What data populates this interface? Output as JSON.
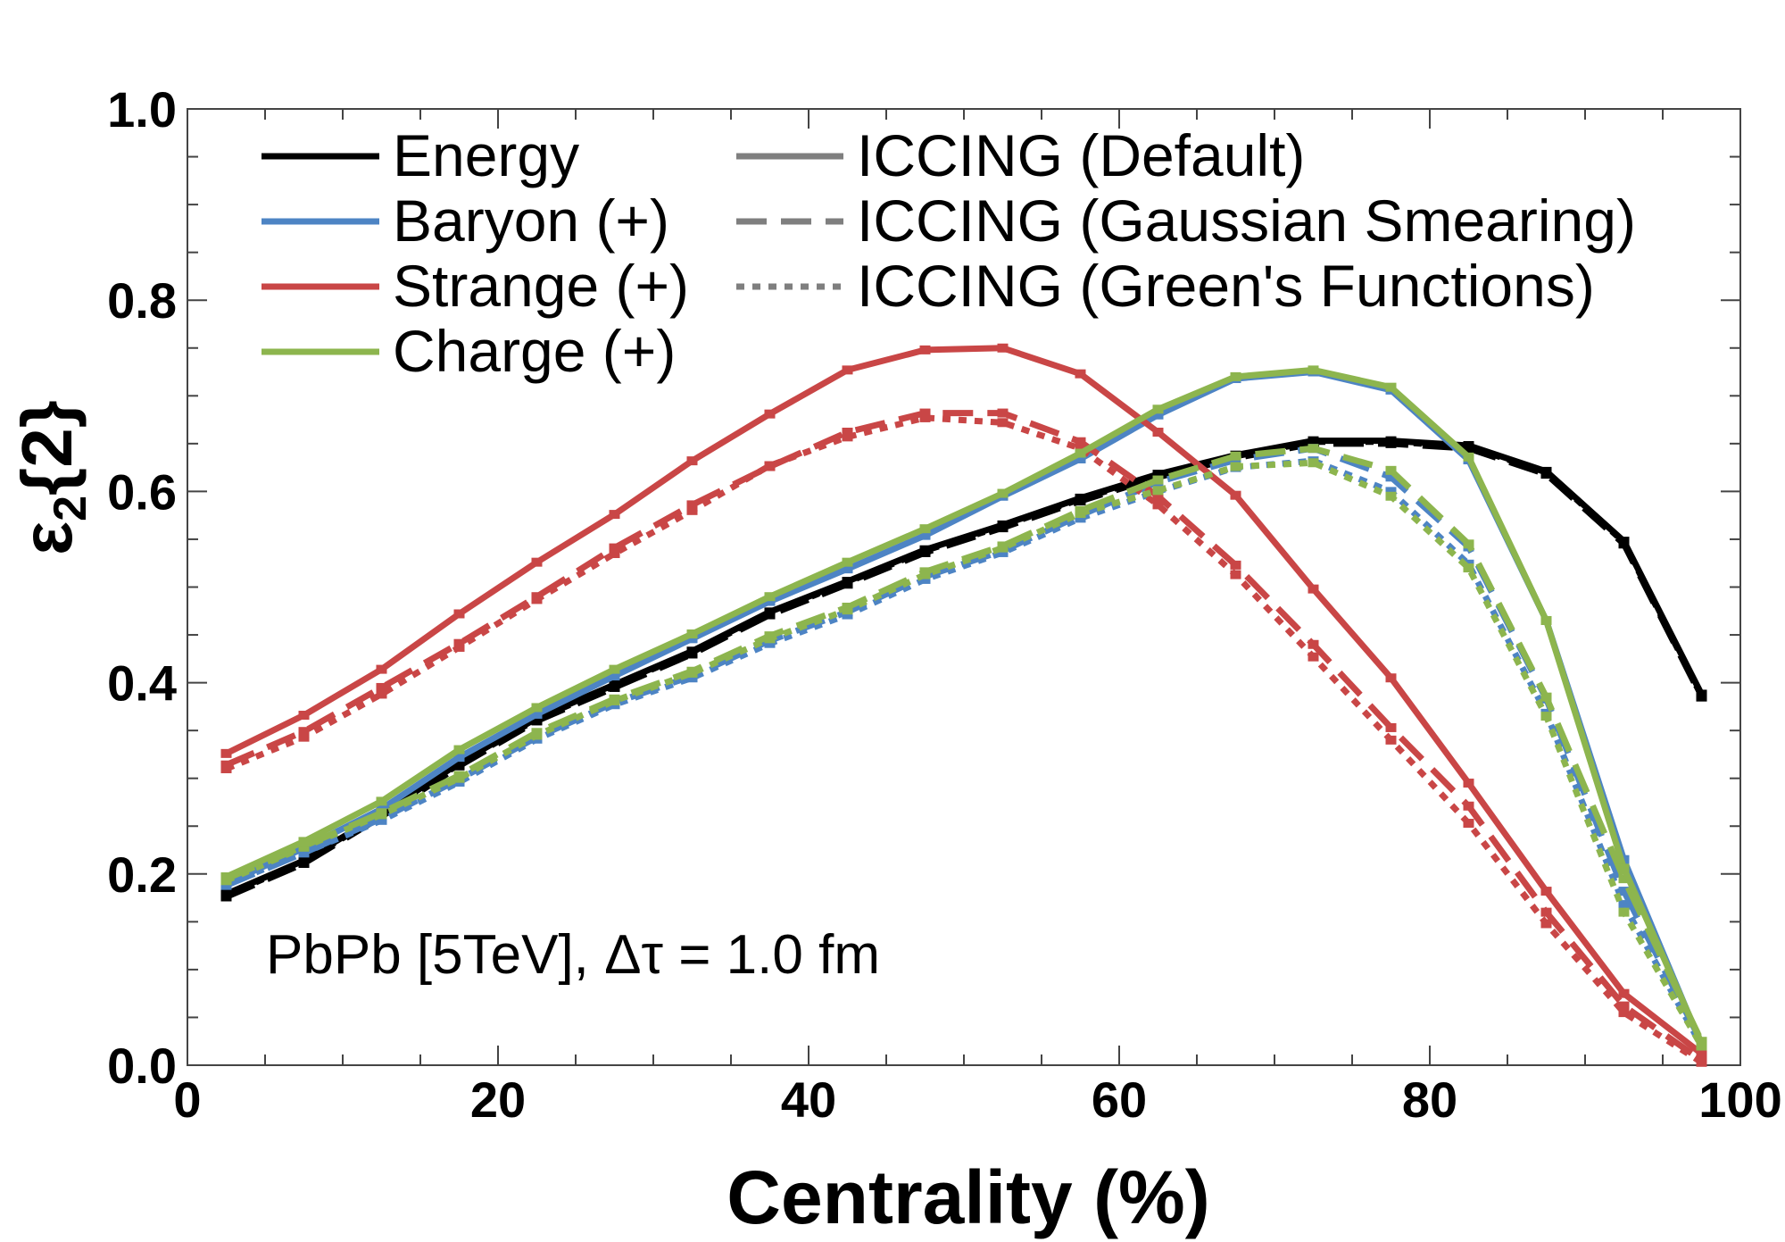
{
  "chart_data": {
    "type": "line",
    "xlabel": "Centrality (%)",
    "ylabel": "ε2{2}",
    "ylabel_parts": {
      "main": "ε",
      "sub": "2",
      "rest": "{2}"
    },
    "xlim": [
      0,
      100
    ],
    "ylim": [
      0,
      1.0
    ],
    "x_ticks": [
      "0",
      "20",
      "40",
      "60",
      "80",
      "100"
    ],
    "y_ticks": [
      "0.0",
      "0.2",
      "0.4",
      "0.6",
      "0.8",
      "1.0"
    ],
    "grid": false,
    "legend_position": "top-left",
    "annotation": "PbPb [5TeV], Δτ = 1.0 fm",
    "legend_colors": [
      {
        "label": "Energy",
        "color": "#000000"
      },
      {
        "label": "Baryon (+)",
        "color": "#4d84c4"
      },
      {
        "label": "Strange (+)",
        "color": "#c94646"
      },
      {
        "label": "Charge (+)",
        "color": "#8db54e"
      }
    ],
    "legend_styles": [
      {
        "label": "ICCING (Default)",
        "dash": "solid"
      },
      {
        "label": "ICCING (Gaussian Smearing)",
        "dash": "dashed"
      },
      {
        "label": "ICCING (Green's Functions)",
        "dash": "dotted"
      }
    ],
    "x": [
      2.5,
      7.5,
      12.5,
      17.5,
      22.5,
      27.5,
      32.5,
      37.5,
      42.5,
      47.5,
      52.5,
      57.5,
      62.5,
      67.5,
      72.5,
      77.5,
      82.5,
      87.5,
      92.5,
      97.5
    ],
    "series": [
      {
        "quantity": "Energy",
        "style": "dotted",
        "color": "#000000",
        "values": [
          0.178,
          0.213,
          0.262,
          0.315,
          0.362,
          0.397,
          0.432,
          0.473,
          0.505,
          0.538,
          0.564,
          0.592,
          0.617,
          0.637,
          0.652,
          0.652,
          0.647,
          0.62,
          0.547,
          0.386
        ]
      },
      {
        "quantity": "Energy",
        "style": "dashed",
        "color": "#000000",
        "values": [
          0.176,
          0.211,
          0.26,
          0.313,
          0.36,
          0.395,
          0.43,
          0.471,
          0.503,
          0.536,
          0.562,
          0.59,
          0.615,
          0.635,
          0.65,
          0.65,
          0.645,
          0.618,
          0.545,
          0.385
        ]
      },
      {
        "quantity": "Energy",
        "style": "solid",
        "color": "#000000",
        "values": [
          0.179,
          0.214,
          0.263,
          0.316,
          0.363,
          0.398,
          0.433,
          0.474,
          0.506,
          0.539,
          0.565,
          0.593,
          0.618,
          0.638,
          0.653,
          0.653,
          0.648,
          0.621,
          0.548,
          0.388
        ]
      },
      {
        "quantity": "Baryon (+)",
        "style": "dotted",
        "color": "#4d84c4",
        "values": [
          0.189,
          0.222,
          0.256,
          0.296,
          0.341,
          0.377,
          0.405,
          0.441,
          0.471,
          0.508,
          0.536,
          0.572,
          0.6,
          0.625,
          0.632,
          0.6,
          0.524,
          0.368,
          0.168,
          0.02
        ]
      },
      {
        "quantity": "Baryon (+)",
        "style": "dashed",
        "color": "#4d84c4",
        "values": [
          0.188,
          0.222,
          0.258,
          0.299,
          0.343,
          0.379,
          0.407,
          0.444,
          0.474,
          0.511,
          0.538,
          0.575,
          0.61,
          0.633,
          0.645,
          0.615,
          0.542,
          0.383,
          0.182,
          0.024
        ]
      },
      {
        "quantity": "Baryon (+)",
        "style": "solid",
        "color": "#4d84c4",
        "values": [
          0.19,
          0.227,
          0.268,
          0.322,
          0.367,
          0.407,
          0.446,
          0.485,
          0.519,
          0.554,
          0.595,
          0.634,
          0.68,
          0.718,
          0.725,
          0.706,
          0.633,
          0.465,
          0.215,
          0.021
        ]
      },
      {
        "quantity": "Strange (+)",
        "style": "dotted",
        "color": "#c94646",
        "values": [
          0.31,
          0.343,
          0.388,
          0.437,
          0.487,
          0.535,
          0.58,
          0.627,
          0.657,
          0.677,
          0.672,
          0.645,
          0.586,
          0.513,
          0.427,
          0.34,
          0.253,
          0.148,
          0.055,
          0.003
        ]
      },
      {
        "quantity": "Strange (+)",
        "style": "dashed",
        "color": "#c94646",
        "values": [
          0.314,
          0.349,
          0.395,
          0.441,
          0.49,
          0.541,
          0.586,
          0.626,
          0.662,
          0.682,
          0.682,
          0.652,
          0.595,
          0.523,
          0.44,
          0.353,
          0.271,
          0.16,
          0.062,
          0.005
        ]
      },
      {
        "quantity": "Strange (+)",
        "style": "solid",
        "color": "#c94646",
        "values": [
          0.326,
          0.366,
          0.414,
          0.472,
          0.526,
          0.576,
          0.632,
          0.681,
          0.727,
          0.748,
          0.75,
          0.723,
          0.662,
          0.596,
          0.498,
          0.405,
          0.295,
          0.182,
          0.075,
          0.012
        ]
      },
      {
        "quantity": "Charge (+)",
        "style": "dotted",
        "color": "#8db54e",
        "values": [
          0.193,
          0.228,
          0.262,
          0.3,
          0.345,
          0.381,
          0.41,
          0.446,
          0.476,
          0.513,
          0.541,
          0.577,
          0.601,
          0.626,
          0.63,
          0.595,
          0.52,
          0.365,
          0.16,
          0.02
        ]
      },
      {
        "quantity": "Charge (+)",
        "style": "dashed",
        "color": "#8db54e",
        "values": [
          0.195,
          0.229,
          0.264,
          0.303,
          0.348,
          0.383,
          0.412,
          0.449,
          0.479,
          0.516,
          0.543,
          0.58,
          0.612,
          0.637,
          0.645,
          0.622,
          0.545,
          0.385,
          0.195,
          0.025
        ]
      },
      {
        "quantity": "Charge (+)",
        "style": "solid",
        "color": "#8db54e",
        "values": [
          0.197,
          0.234,
          0.276,
          0.33,
          0.374,
          0.414,
          0.451,
          0.49,
          0.526,
          0.561,
          0.598,
          0.64,
          0.686,
          0.72,
          0.727,
          0.709,
          0.636,
          0.465,
          0.206,
          0.023
        ]
      }
    ]
  }
}
